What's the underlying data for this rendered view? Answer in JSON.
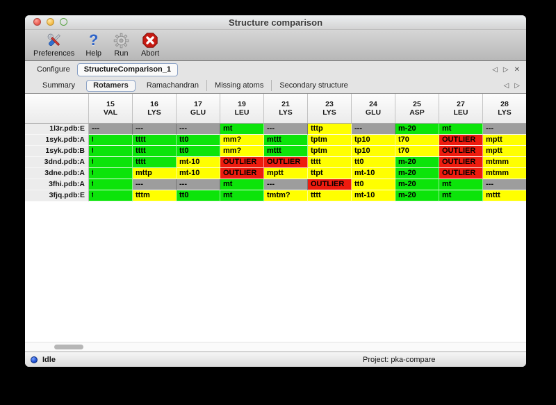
{
  "window": {
    "title": "Structure comparison"
  },
  "toolbar": {
    "items": [
      {
        "label": "Preferences",
        "icon": "tools-icon"
      },
      {
        "label": "Help",
        "icon": "question-mark-icon"
      },
      {
        "label": "Run",
        "icon": "gear-icon"
      },
      {
        "label": "Abort",
        "icon": "stop-x-icon"
      }
    ]
  },
  "configure_bar": {
    "label": "Configure",
    "selected_config": "StructureComparison_1",
    "nav": {
      "back": "◁",
      "forward": "▷",
      "close": "✕"
    }
  },
  "tabs": {
    "items": [
      "Summary",
      "Rotamers",
      "Ramachandran",
      "Missing atoms",
      "Secondary structure"
    ],
    "selected": "Rotamers",
    "nav": {
      "back": "◁",
      "forward": "▷"
    }
  },
  "table": {
    "columns": [
      {
        "num": "15",
        "res": "VAL"
      },
      {
        "num": "16",
        "res": "LYS"
      },
      {
        "num": "17",
        "res": "GLU"
      },
      {
        "num": "19",
        "res": "LEU"
      },
      {
        "num": "21",
        "res": "LYS"
      },
      {
        "num": "23",
        "res": "LYS"
      },
      {
        "num": "24",
        "res": "GLU"
      },
      {
        "num": "25",
        "res": "ASP"
      },
      {
        "num": "27",
        "res": "LEU"
      },
      {
        "num": "28",
        "res": "LYS"
      }
    ],
    "rows": [
      {
        "label": "1l3r.pdb:E",
        "extra": "g",
        "cells": [
          {
            "t": "---",
            "c": "x"
          },
          {
            "t": "---",
            "c": "x"
          },
          {
            "t": "---",
            "c": "x"
          },
          {
            "t": "mt",
            "c": "g"
          },
          {
            "t": "---",
            "c": "x"
          },
          {
            "t": "tttp",
            "c": "y"
          },
          {
            "t": "---",
            "c": "x"
          },
          {
            "t": "m-20",
            "c": "g"
          },
          {
            "t": "mt",
            "c": "g"
          },
          {
            "t": "---",
            "c": "x"
          }
        ]
      },
      {
        "label": "1syk.pdb:A",
        "extra": "g",
        "cells": [
          {
            "t": "t",
            "c": "g",
            "clip": true
          },
          {
            "t": "tttt",
            "c": "g"
          },
          {
            "t": "tt0",
            "c": "g"
          },
          {
            "t": "mm?",
            "c": "y"
          },
          {
            "t": "mttt",
            "c": "g"
          },
          {
            "t": "tptm",
            "c": "y"
          },
          {
            "t": "tp10",
            "c": "y"
          },
          {
            "t": "t70",
            "c": "y"
          },
          {
            "t": "OUTLIER",
            "c": "r"
          },
          {
            "t": "mptt",
            "c": "y"
          }
        ]
      },
      {
        "label": "1syk.pdb:B",
        "extra": "g",
        "cells": [
          {
            "t": "t",
            "c": "g",
            "clip": true
          },
          {
            "t": "tttt",
            "c": "g"
          },
          {
            "t": "tt0",
            "c": "g"
          },
          {
            "t": "mm?",
            "c": "y"
          },
          {
            "t": "mttt",
            "c": "g"
          },
          {
            "t": "tptm",
            "c": "y"
          },
          {
            "t": "tp10",
            "c": "y"
          },
          {
            "t": "t70",
            "c": "y"
          },
          {
            "t": "OUTLIER",
            "c": "r"
          },
          {
            "t": "mptt",
            "c": "y"
          }
        ]
      },
      {
        "label": "3dnd.pdb:A",
        "extra": "g",
        "cells": [
          {
            "t": "t",
            "c": "g",
            "clip": true
          },
          {
            "t": "tttt",
            "c": "g"
          },
          {
            "t": "mt-10",
            "c": "y"
          },
          {
            "t": "OUTLIER",
            "c": "r"
          },
          {
            "t": "OUTLIER",
            "c": "r"
          },
          {
            "t": "tttt",
            "c": "y"
          },
          {
            "t": "tt0",
            "c": "y"
          },
          {
            "t": "m-20",
            "c": "g"
          },
          {
            "t": "OUTLIER",
            "c": "r"
          },
          {
            "t": "mtmm",
            "c": "y"
          }
        ]
      },
      {
        "label": "3dne.pdb:A",
        "extra": "g",
        "cells": [
          {
            "t": "t",
            "c": "g",
            "clip": true
          },
          {
            "t": "mttp",
            "c": "y"
          },
          {
            "t": "mt-10",
            "c": "y"
          },
          {
            "t": "OUTLIER",
            "c": "r"
          },
          {
            "t": "mptt",
            "c": "y"
          },
          {
            "t": "ttpt",
            "c": "y"
          },
          {
            "t": "mt-10",
            "c": "y"
          },
          {
            "t": "m-20",
            "c": "g"
          },
          {
            "t": "OUTLIER",
            "c": "r"
          },
          {
            "t": "mtmm",
            "c": "y"
          }
        ]
      },
      {
        "label": "3fhi.pdb:A",
        "extra": "y",
        "cells": [
          {
            "t": "t",
            "c": "g",
            "clip": true
          },
          {
            "t": "---",
            "c": "x"
          },
          {
            "t": "---",
            "c": "x"
          },
          {
            "t": "mt",
            "c": "g"
          },
          {
            "t": "---",
            "c": "x"
          },
          {
            "t": "OUTLIER",
            "c": "r"
          },
          {
            "t": "tt0",
            "c": "y"
          },
          {
            "t": "m-20",
            "c": "g"
          },
          {
            "t": "mt",
            "c": "g"
          },
          {
            "t": "---",
            "c": "x"
          }
        ]
      },
      {
        "label": "3fjq.pdb:E",
        "extra": "g",
        "cells": [
          {
            "t": "t",
            "c": "g",
            "clip": true
          },
          {
            "t": "tttm",
            "c": "y"
          },
          {
            "t": "tt0",
            "c": "g"
          },
          {
            "t": "mt",
            "c": "g"
          },
          {
            "t": "tmtm?",
            "c": "y"
          },
          {
            "t": "tttt",
            "c": "y"
          },
          {
            "t": "mt-10",
            "c": "y"
          },
          {
            "t": "m-20",
            "c": "g"
          },
          {
            "t": "mt",
            "c": "g"
          },
          {
            "t": "mttt",
            "c": "y"
          }
        ]
      }
    ]
  },
  "status_bar": {
    "status": "Idle",
    "project": "Project: pka-compare"
  },
  "colors": {
    "green": "#0ce40a",
    "yellow": "#ffff00",
    "red": "#ee1b0e",
    "gray": "#9d9d9d"
  }
}
